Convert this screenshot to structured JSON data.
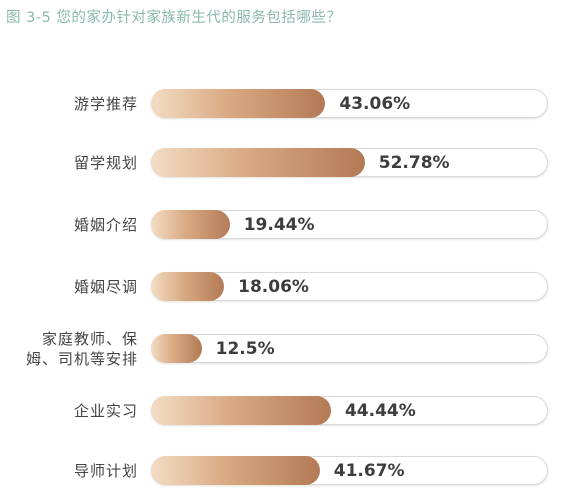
{
  "chart_data": {
    "type": "bar",
    "orientation": "horizontal",
    "title": "图 3-5 您的家办针对家族新生代的服务包括哪些？",
    "categories": [
      "游学推荐",
      "留学规划",
      "婚姻介绍",
      "婚姻尽调",
      "家庭教师、保\n姆、司机等安排",
      "企业实习",
      "导师计划"
    ],
    "values": [
      43.06,
      52.78,
      19.44,
      18.06,
      12.5,
      44.44,
      41.67
    ],
    "value_labels": [
      "43.06%",
      "52.78%",
      "19.44%",
      "18.06%",
      "12.5%",
      "44.44%",
      "41.67%"
    ],
    "xlim": [
      0,
      100
    ],
    "unit": "%",
    "grid": false,
    "legend": "none",
    "colors": {
      "bar_start": "#f3dcc4",
      "bar_mid": "#d9a982",
      "bar_end": "#b37a55",
      "track_border": "#d8d8d8",
      "title": "#8ab8ad",
      "label": "#444444"
    }
  }
}
